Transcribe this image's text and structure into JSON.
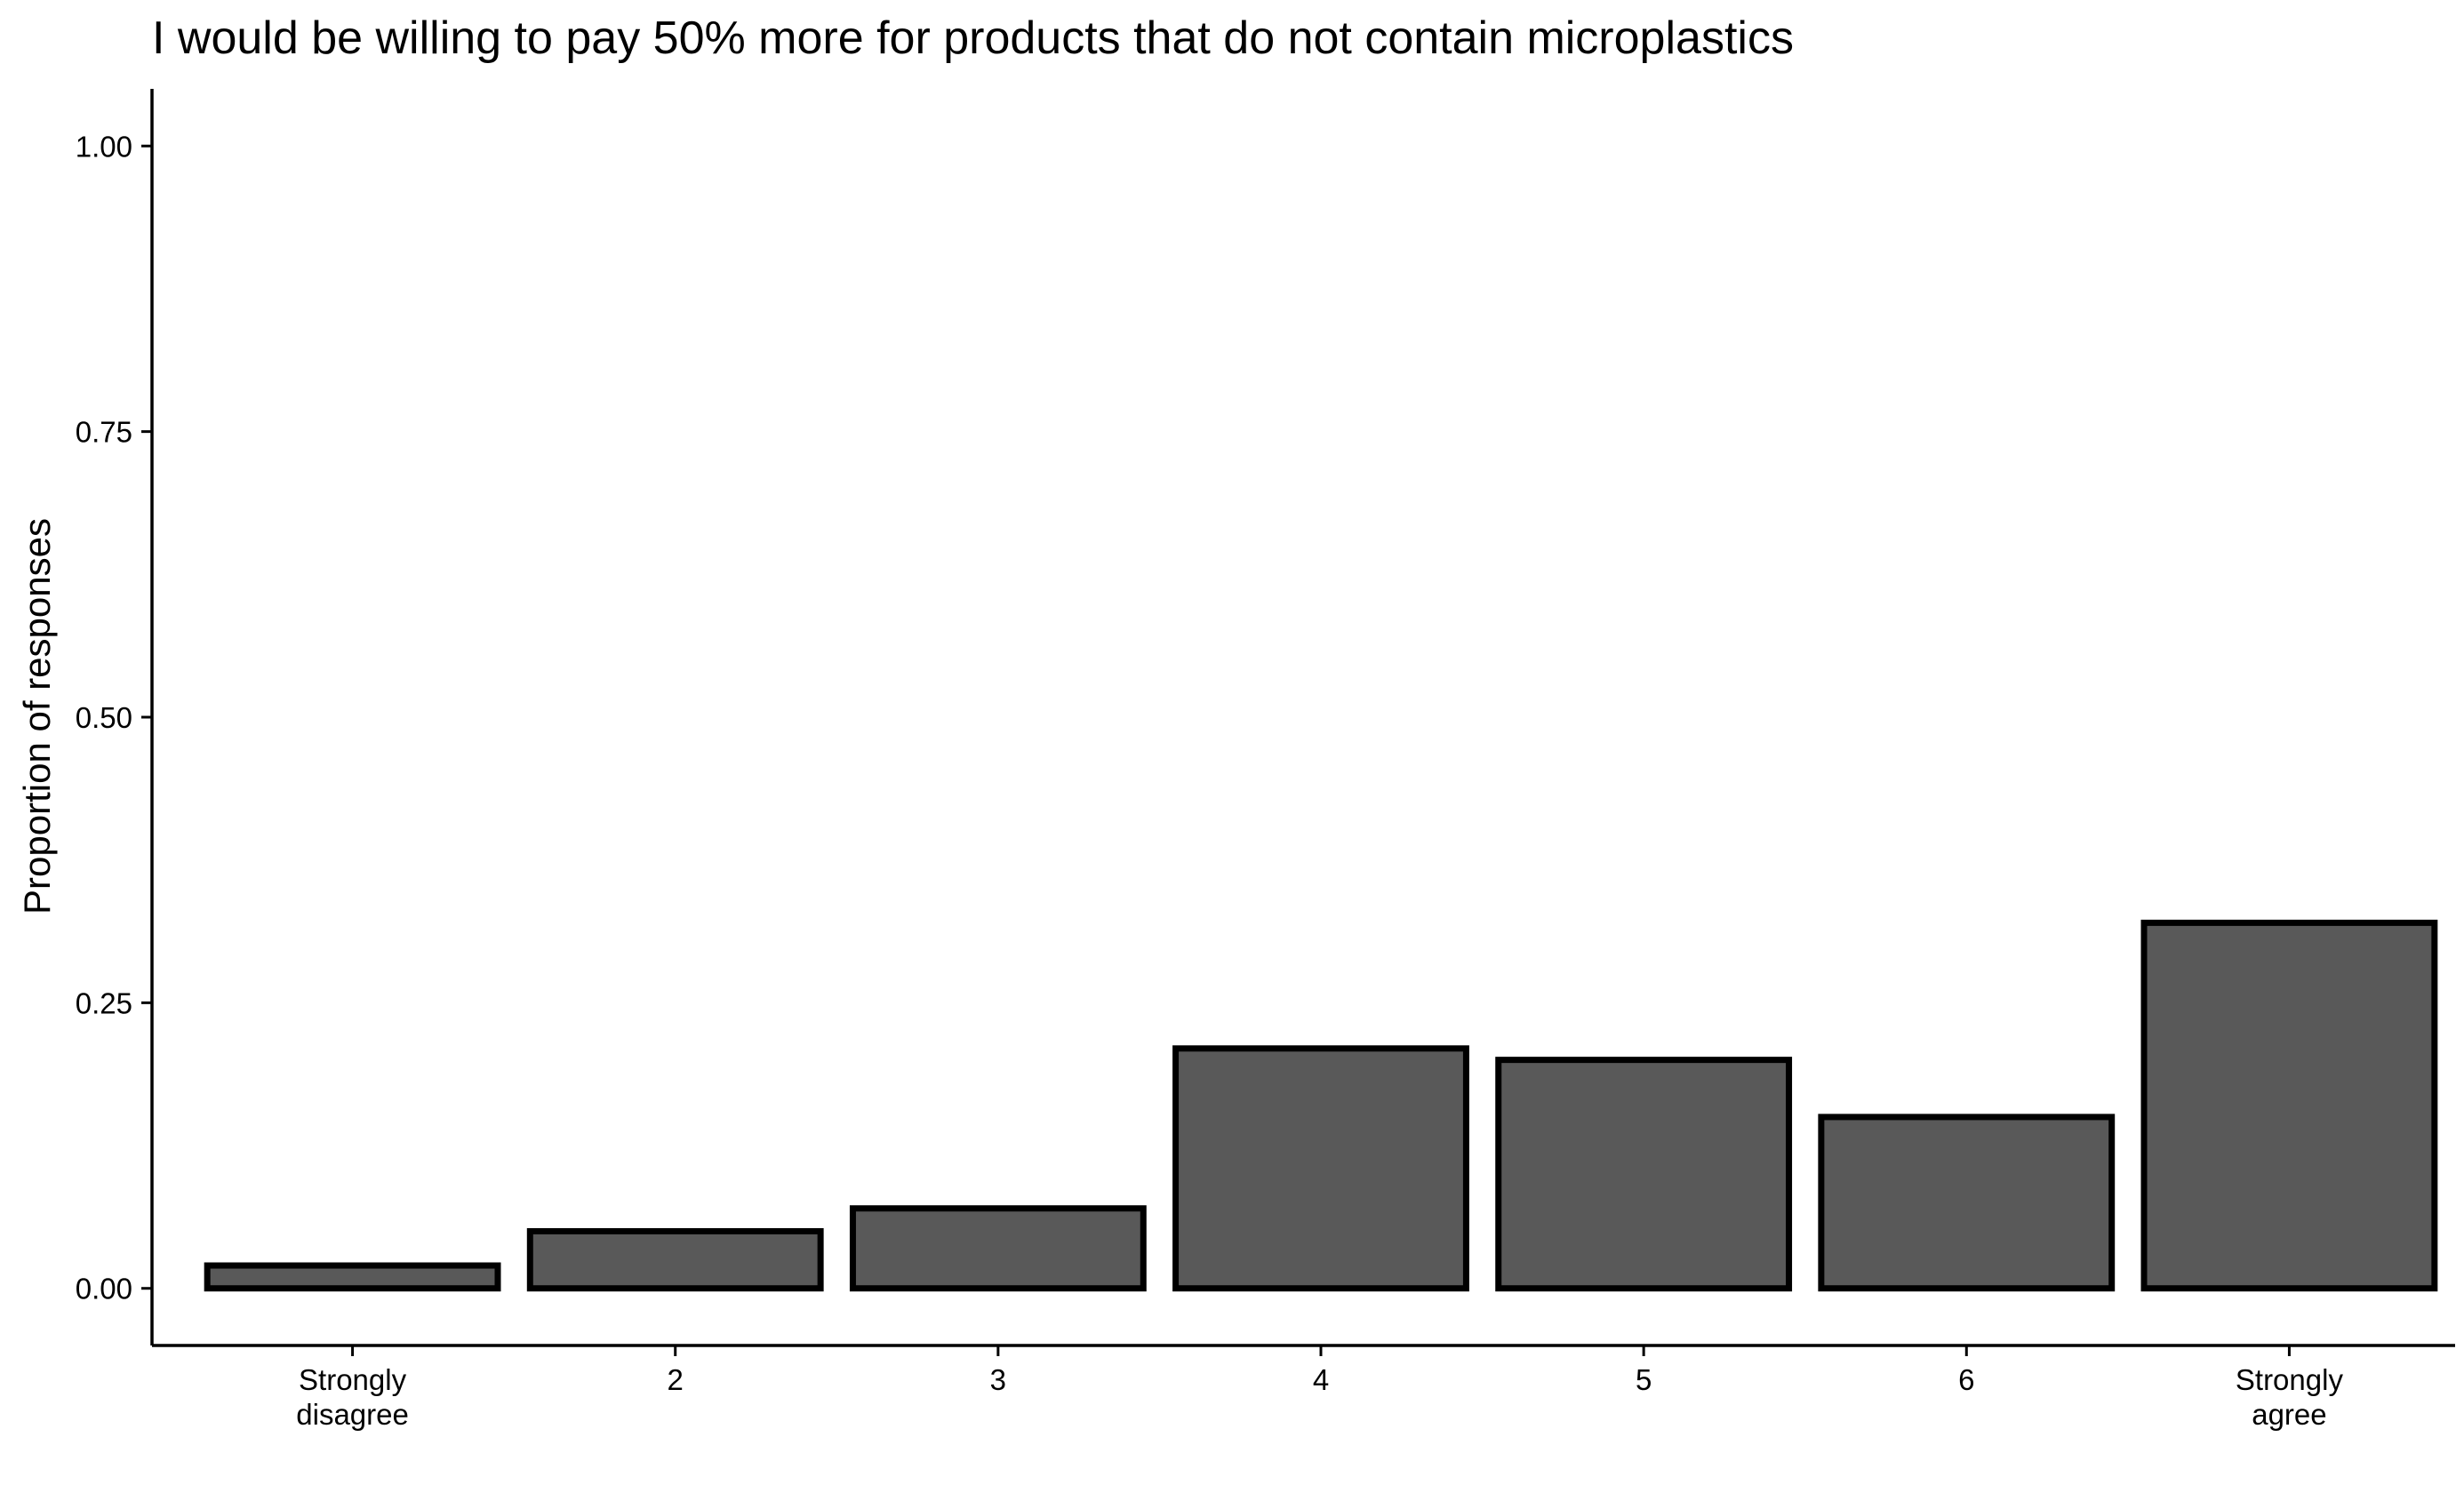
{
  "chart_data": {
    "type": "bar",
    "title": "I would be willing to pay 50% more for products that do not contain microplastics",
    "xlabel": "",
    "ylabel": "Proportion of responses",
    "categories": [
      "Strongly\ndisagree",
      "2",
      "3",
      "4",
      "5",
      "6",
      "Strongly\nagree"
    ],
    "values": [
      0.02,
      0.05,
      0.07,
      0.21,
      0.2,
      0.15,
      0.32
    ],
    "ylim": [
      -0.05,
      1.05
    ],
    "yticks": [
      0.0,
      0.25,
      0.5,
      0.75,
      1.0
    ],
    "ytick_labels": [
      "0.00",
      "0.25",
      "0.50",
      "0.75",
      "1.00"
    ],
    "grid": false,
    "legend": "none",
    "bar_fill": "#595959",
    "bar_stroke": "#000000"
  }
}
